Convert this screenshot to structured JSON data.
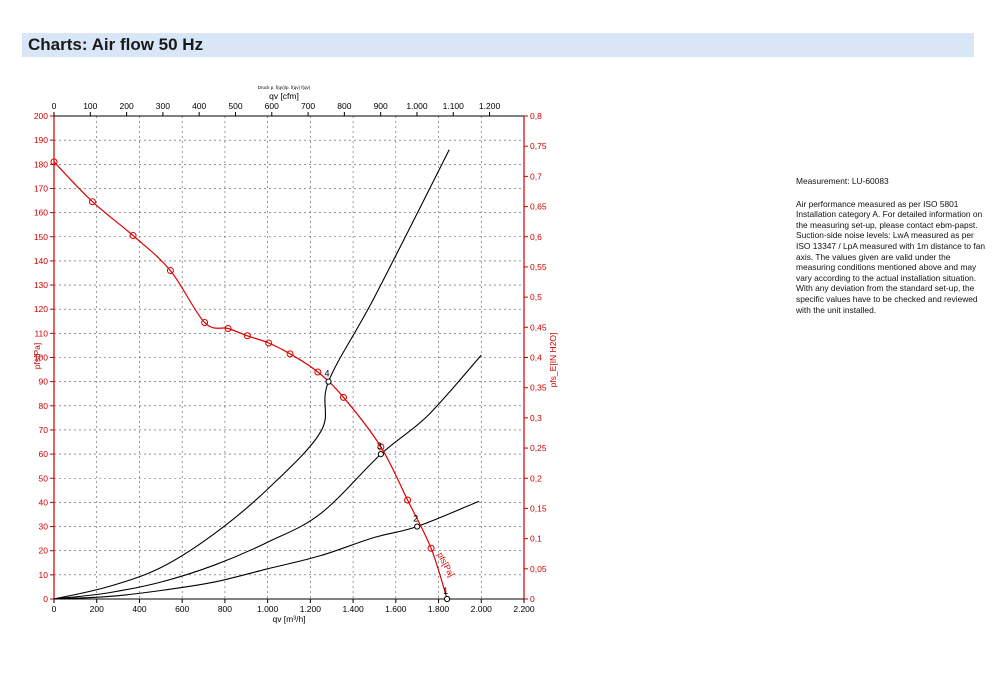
{
  "header": {
    "title": "Charts: Air flow 50 Hz"
  },
  "info": {
    "measurement": "Measurement: LU-60083",
    "description": "Air performance measured as per ISO 5801 Installation category A. For detailed information on the measuring set-up, please contact ebm-papst. Suction-side noise levels: LwA measured as per ISO 13347 / LpA measured with 1m distance to fan axis. The values given are valid under the measuring conditions mentioned above and may vary according to the actual installation situation. With any deviation from the standard set-up, the specific values have to be checked and reviewed with the unit installed."
  },
  "chart_data": {
    "type": "line",
    "small_top_text": "Druck p. f(qv)/p. f(qv) f(qv)",
    "x_bottom": {
      "label": "qv [m³/h]",
      "ticks": [
        "0",
        "200",
        "400",
        "600",
        "800",
        "1.000",
        "1.200",
        "1.400",
        "1.600",
        "1.800",
        "2.000",
        "2.200"
      ],
      "range": [
        0,
        2200
      ]
    },
    "x_top": {
      "label": "qv [cfm]",
      "ticks": [
        "0",
        "100",
        "200",
        "300",
        "400",
        "500",
        "600",
        "700",
        "800",
        "900",
        "1.000",
        "1.100",
        "1.200"
      ],
      "range": [
        0,
        1294.9
      ]
    },
    "y_left": {
      "label": "pfs[Pa]",
      "ticks": [
        "0",
        "10",
        "20",
        "30",
        "40",
        "50",
        "60",
        "70",
        "80",
        "90",
        "100",
        "110",
        "120",
        "130",
        "140",
        "150",
        "160",
        "170",
        "180",
        "190",
        "200"
      ],
      "range": [
        0,
        200
      ]
    },
    "y_right": {
      "label": "pfs_E[IN H2O]",
      "ticks": [
        "0",
        "0,05",
        "0,1",
        "0,15",
        "0,2",
        "0,25",
        "0,3",
        "0,35",
        "0,4",
        "0,45",
        "0,5",
        "0,55",
        "0,6",
        "0,65",
        "0,7",
        "0,75",
        "0,8"
      ],
      "range": [
        0,
        0.8
      ]
    },
    "grid": true,
    "colors": {
      "fan_curve": "#e00000",
      "system_curves": "#000000",
      "axis_left": "#cc0000",
      "axis_right": "#cc0000",
      "axis_top": "#000000"
    },
    "fan_curve": {
      "name": "pfs[Pa]",
      "points": [
        [
          0,
          181
        ],
        [
          180,
          164.5
        ],
        [
          370,
          150.5
        ],
        [
          545,
          136
        ],
        [
          705,
          114.5
        ],
        [
          815,
          112
        ],
        [
          905,
          109
        ],
        [
          1005,
          106
        ],
        [
          1105,
          101.5
        ],
        [
          1235,
          94
        ],
        [
          1355,
          83.5
        ],
        [
          1530,
          63
        ],
        [
          1655,
          41
        ],
        [
          1765,
          21
        ],
        [
          1840,
          0
        ]
      ]
    },
    "system_curves": [
      {
        "points": [
          [
            0,
            0
          ],
          [
            250,
            1
          ],
          [
            500,
            3.5
          ],
          [
            750,
            7
          ],
          [
            1000,
            12.5
          ],
          [
            1250,
            18
          ],
          [
            1500,
            25.5
          ],
          [
            1700,
            30
          ],
          [
            1990,
            40.5
          ]
        ]
      },
      {
        "points": [
          [
            0,
            0
          ],
          [
            250,
            2.5
          ],
          [
            500,
            7
          ],
          [
            750,
            14
          ],
          [
            1000,
            23.5
          ],
          [
            1250,
            35.5
          ],
          [
            1530,
            60
          ],
          [
            1750,
            76
          ],
          [
            2000,
            101
          ]
        ]
      },
      {
        "points": [
          [
            0,
            0
          ],
          [
            250,
            5
          ],
          [
            500,
            13
          ],
          [
            750,
            27
          ],
          [
            1000,
            45.5
          ],
          [
            1250,
            69.5
          ],
          [
            1285,
            90
          ],
          [
            1500,
            125
          ],
          [
            1850,
            186
          ]
        ]
      }
    ],
    "operating_points": [
      {
        "label": "1",
        "x": 1840,
        "y": 0
      },
      {
        "label": "2",
        "x": 1700,
        "y": 30
      },
      {
        "label": "3",
        "x": 1530,
        "y": 60
      },
      {
        "label": "4",
        "x": 1285,
        "y": 90
      }
    ]
  }
}
